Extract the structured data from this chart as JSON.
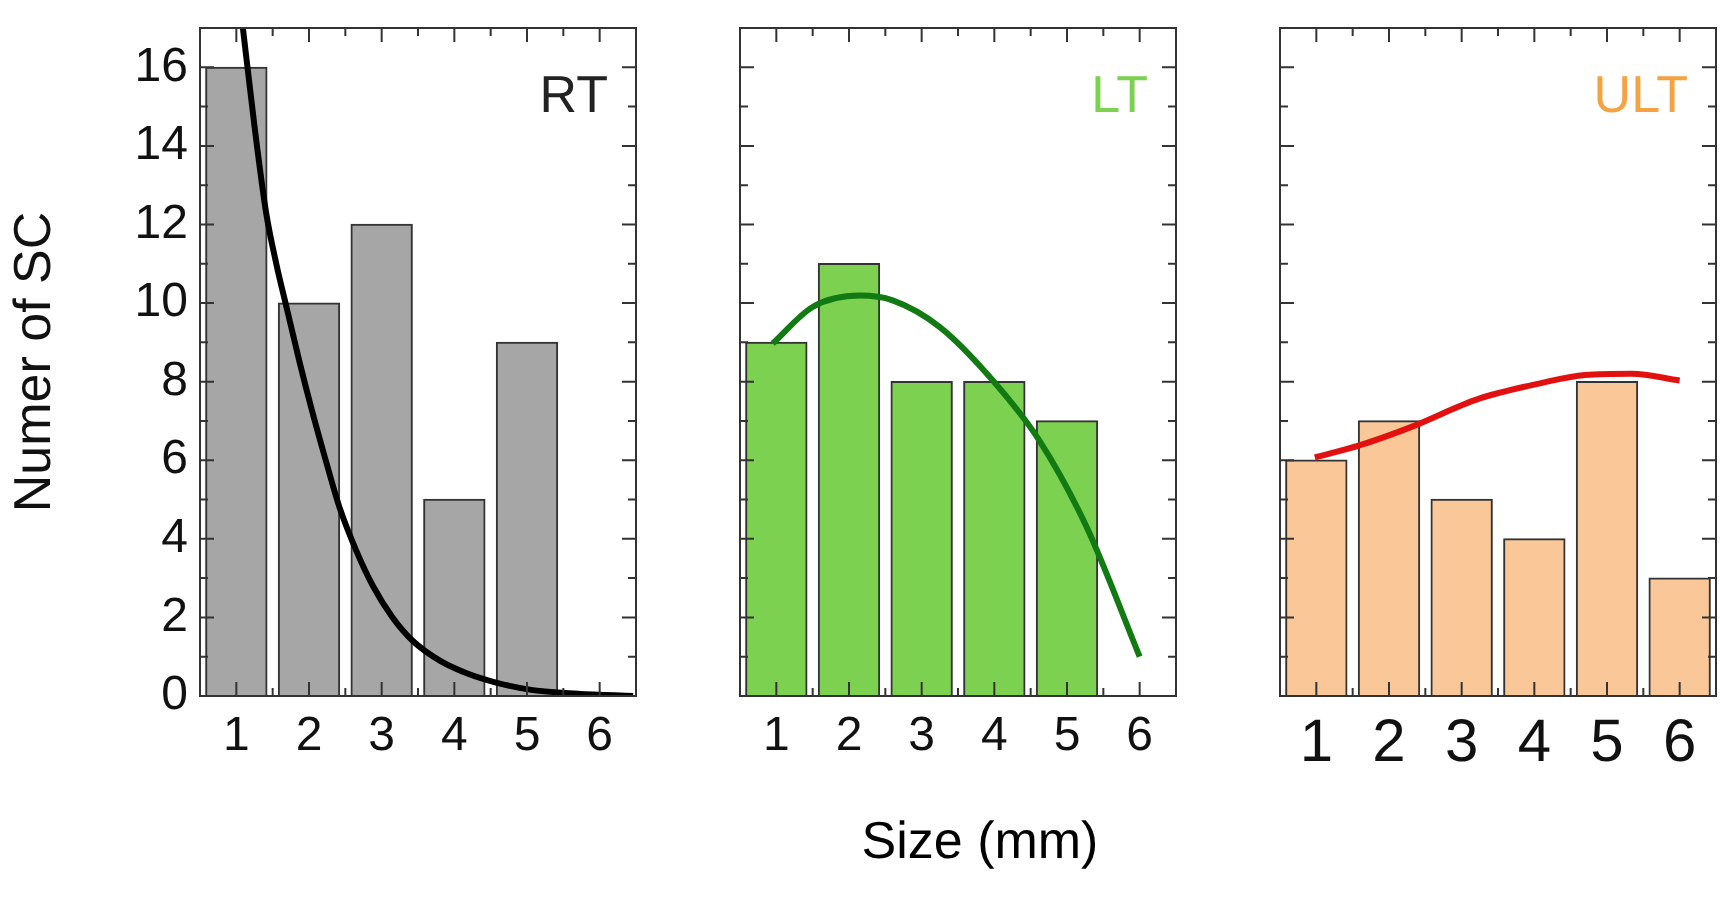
{
  "chart_data": [
    {
      "type": "bar",
      "title": "RT",
      "ylabel": "Numer of SC",
      "x": [
        1,
        2,
        3,
        4,
        5,
        6
      ],
      "xlim": [
        0.5,
        6.5
      ],
      "ylim": [
        0,
        17
      ],
      "xticks": [
        1,
        {
          "value": 1.5,
          "label": null
        },
        2,
        {
          "value": 2.5,
          "label": null
        },
        3,
        {
          "value": 3.5,
          "label": null
        },
        4,
        {
          "value": 4.5,
          "label": null
        },
        5,
        {
          "value": 5.5,
          "label": null
        },
        6
      ],
      "yticks": [
        0,
        {
          "value": 1,
          "label": null
        },
        2,
        {
          "value": 3,
          "label": null
        },
        4,
        {
          "value": 5,
          "label": null
        },
        6,
        {
          "value": 7,
          "label": null
        },
        8,
        {
          "value": 9,
          "label": null
        },
        10,
        {
          "value": 11,
          "label": null
        },
        12,
        {
          "value": 13,
          "label": null
        },
        14,
        {
          "value": 15,
          "label": null
        },
        16
      ],
      "grid": false,
      "series": [
        {
          "color": "#a6a6a6",
          "values": [
            16,
            10,
            12,
            5,
            9,
            0
          ]
        },
        {
          "type": "line",
          "color": "#000000",
          "x": [
            1.09,
            1.25,
            1.41,
            1.55,
            1.69,
            1.87,
            2.05,
            2.23,
            2.42,
            2.65,
            2.88,
            3.15,
            3.43,
            3.8,
            4.17,
            4.6,
            5.08,
            5.7,
            6.46
          ],
          "values": [
            17,
            14.5,
            12.3,
            11,
            9.9,
            8.5,
            7.2,
            6,
            4.8,
            3.7,
            2.8,
            2,
            1.4,
            0.9,
            0.58,
            0.33,
            0.15,
            0.06,
            0
          ]
        }
      ]
    },
    {
      "type": "bar",
      "title": "LT",
      "xlabel": "Size (mm)",
      "tick_labels": "x",
      "x": [
        1,
        2,
        3,
        4,
        5,
        6
      ],
      "xlim": [
        0.5,
        6.5
      ],
      "ylim": [
        0,
        17
      ],
      "xticks": [
        1,
        {
          "value": 1.5,
          "label": null
        },
        2,
        {
          "value": 2.5,
          "label": null
        },
        3,
        {
          "value": 3.5,
          "label": null
        },
        4,
        {
          "value": 4.5,
          "label": null
        },
        5,
        {
          "value": 5.5,
          "label": null
        },
        6
      ],
      "yticks": [
        0,
        {
          "value": 1,
          "label": null
        },
        2,
        {
          "value": 3,
          "label": null
        },
        4,
        {
          "value": 5,
          "label": null
        },
        6,
        {
          "value": 7,
          "label": null
        },
        8,
        {
          "value": 9,
          "label": null
        },
        10,
        {
          "value": 11,
          "label": null
        },
        12,
        {
          "value": 13,
          "label": null
        },
        14,
        {
          "value": 15,
          "label": null
        },
        16
      ],
      "grid": false,
      "series": [
        {
          "color": "#7dd150",
          "values": [
            9,
            11,
            8,
            8,
            7,
            0
          ]
        },
        {
          "type": "line",
          "color": "#127a12",
          "x": [
            0.95,
            1.5,
            2.15,
            2.6,
            3.25,
            3.98,
            4.62,
            5.27,
            6.0
          ],
          "values": [
            8.97,
            9.9,
            10.19,
            10.07,
            9.39,
            8.03,
            6.5,
            4.3,
            1.0
          ]
        }
      ]
    },
    {
      "type": "bar",
      "title": "ULT",
      "tick_labels": "x",
      "x": [
        1,
        2,
        3,
        4,
        5,
        6
      ],
      "xlim": [
        0.5,
        6.5
      ],
      "ylim": [
        0,
        17
      ],
      "xticks": [
        1,
        {
          "value": 1.5,
          "label": null
        },
        2,
        {
          "value": 2.5,
          "label": null
        },
        3,
        {
          "value": 3.5,
          "label": null
        },
        4,
        {
          "value": 4.5,
          "label": null
        },
        5,
        {
          "value": 5.5,
          "label": null
        },
        6
      ],
      "yticks": [
        0,
        {
          "value": 1,
          "label": null
        },
        2,
        {
          "value": 3,
          "label": null
        },
        4,
        {
          "value": 5,
          "label": null
        },
        6,
        {
          "value": 7,
          "label": null
        },
        8,
        {
          "value": 9,
          "label": null
        },
        10,
        {
          "value": 11,
          "label": null
        },
        12,
        {
          "value": 13,
          "label": null
        },
        14,
        {
          "value": 15,
          "label": null
        },
        16
      ],
      "grid": false,
      "series": [
        {
          "color": "#fac898",
          "values": [
            6,
            7,
            5,
            4,
            8,
            3
          ]
        },
        {
          "type": "line",
          "color": "#e31010",
          "x": [
            0.98,
            1.58,
            2.31,
            3.23,
            4.06,
            4.7,
            5.34,
            6.0
          ],
          "values": [
            6.07,
            6.37,
            6.85,
            7.56,
            7.95,
            8.17,
            8.2,
            8.03
          ]
        }
      ]
    }
  ]
}
